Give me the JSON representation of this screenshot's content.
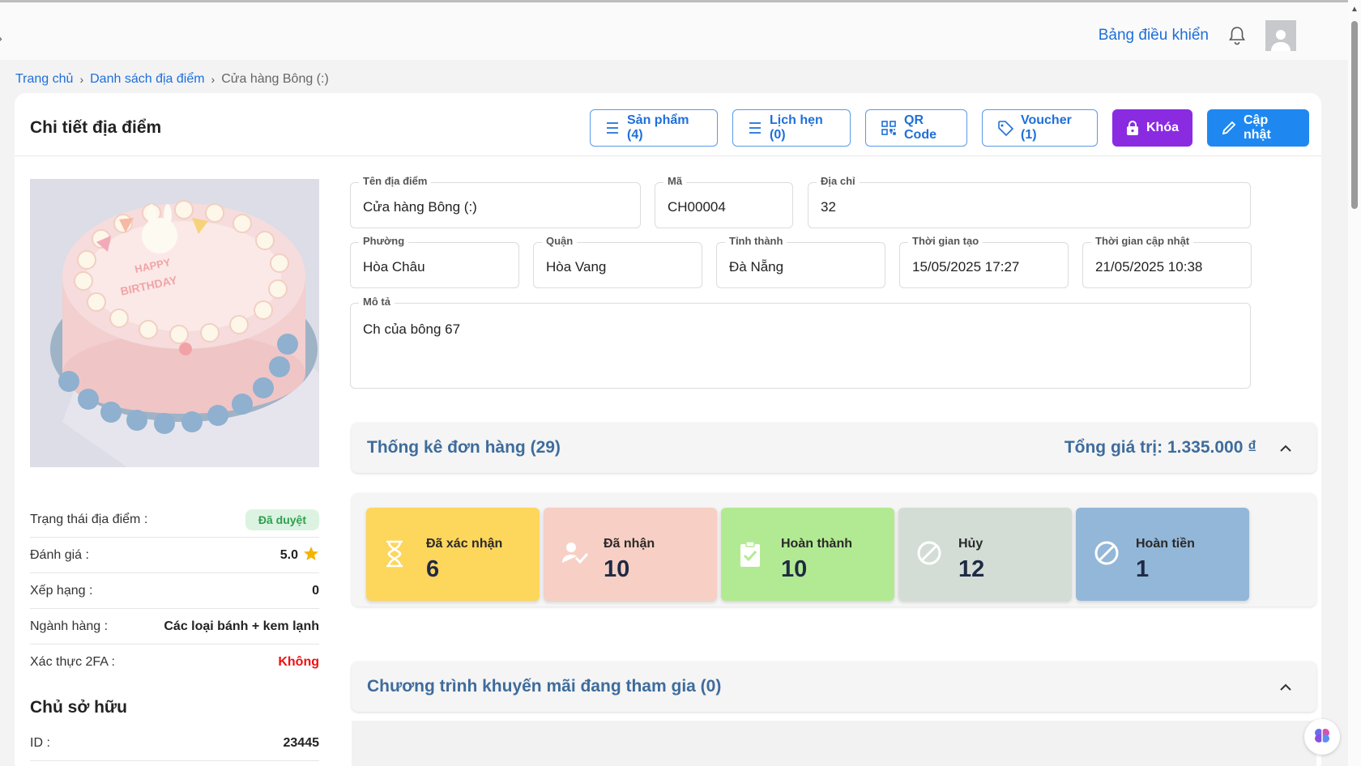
{
  "topbar": {
    "dashboard_label": "Bảng điều khiển"
  },
  "breadcrumb": [
    {
      "label": "Trang chủ"
    },
    {
      "label": "Danh sách địa điểm"
    },
    {
      "label": "Cửa hàng Bông (:)"
    }
  ],
  "page": {
    "title": "Chi tiết địa điểm"
  },
  "actions": {
    "products": "Sản phẩm (4)",
    "appointments": "Lịch hẹn (0)",
    "qr": "QR Code",
    "voucher": "Voucher (1)",
    "lock": "Khóa",
    "update": "Cập nhật"
  },
  "colors": {
    "primary": "#1e6fd9",
    "lock": "#8a2be2",
    "update": "#1e88f0",
    "section_title": "#3e6c9c"
  },
  "info": {
    "status_label": "Trạng thái địa điểm :",
    "status_value": "Đã duyệt",
    "rating_label": "Đánh giá :",
    "rating_value": "5.0",
    "rank_label": "Xếp hạng :",
    "rank_value": "0",
    "industry_label": "Ngành hàng :",
    "industry_value": "Các loại bánh + kem lạnh",
    "twofa_label": "Xác thực 2FA :",
    "twofa_value": "Không"
  },
  "owner": {
    "title": "Chủ sở hữu",
    "id_label": "ID :",
    "id_value": "23445"
  },
  "fields": {
    "name": {
      "label": "Tên địa điểm",
      "value": "Cửa hàng Bông (:)"
    },
    "code": {
      "label": "Mã",
      "value": "CH00004"
    },
    "address": {
      "label": "Địa chỉ",
      "value": "32"
    },
    "ward": {
      "label": "Phường",
      "value": "Hòa Châu"
    },
    "district": {
      "label": "Quận",
      "value": "Hòa Vang"
    },
    "city": {
      "label": "Tỉnh thành",
      "value": "Đà Nẵng"
    },
    "created": {
      "label": "Thời gian tạo",
      "value": "15/05/2025 17:27"
    },
    "updated": {
      "label": "Thời gian cập nhật",
      "value": "21/05/2025 10:38"
    },
    "description": {
      "label": "Mô tả",
      "value": "Ch của bông 67"
    }
  },
  "orders": {
    "title": "Thống kê đơn hàng (29)",
    "total": "Tổng giá trị: 1.335.000 ₫",
    "stats": [
      {
        "label": "Đã xác nhận",
        "value": "6",
        "color": "#fdd65c",
        "icon": "hourglass-icon"
      },
      {
        "label": "Đã nhận",
        "value": "10",
        "color": "#f7cfc4",
        "icon": "user-check-icon"
      },
      {
        "label": "Hoàn thành",
        "value": "10",
        "color": "#b2ea93",
        "icon": "clipboard-check-icon"
      },
      {
        "label": "Hủy",
        "value": "12",
        "color": "#d3ddd6",
        "icon": "cancel-icon"
      },
      {
        "label": "Hoàn tiền",
        "value": "1",
        "color": "#93b7d8",
        "icon": "refund-cancel-icon"
      }
    ]
  },
  "promotions": {
    "title": "Chương trình khuyến mãi đang tham gia (0)"
  }
}
